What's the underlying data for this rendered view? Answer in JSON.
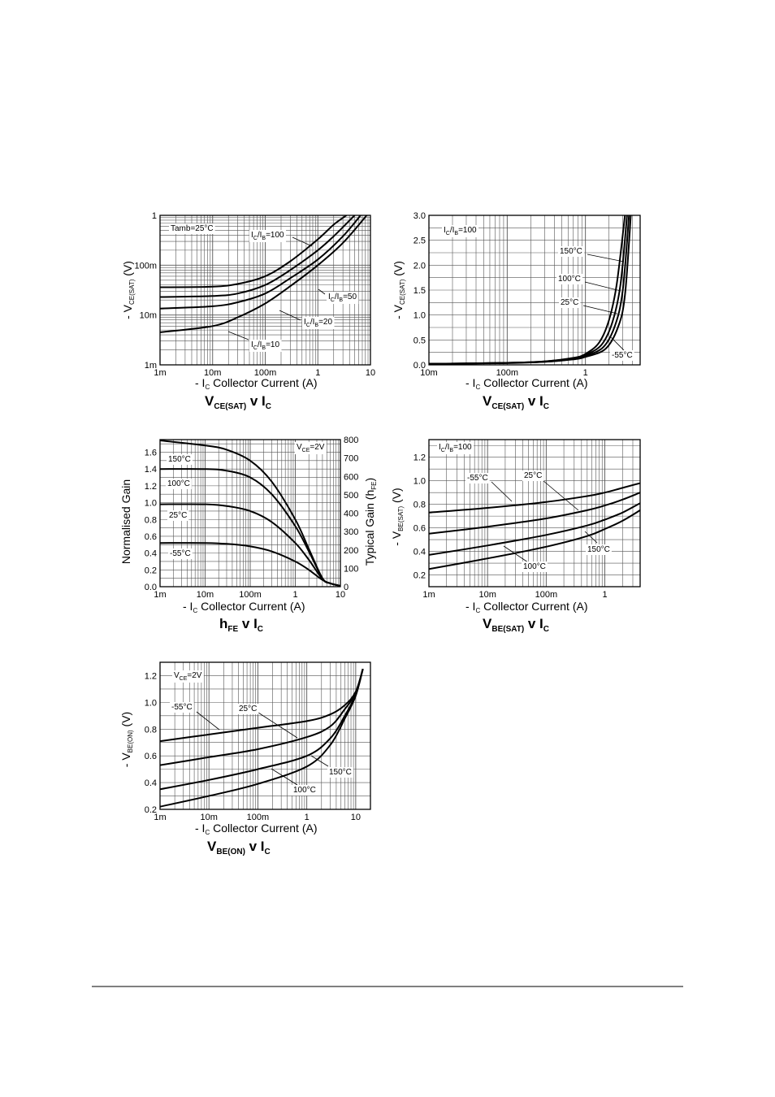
{
  "chart_data": [
    {
      "id": "c1",
      "type": "line",
      "title": {
        "main": "V",
        "main_sub": "CE(SAT)",
        "mid": " v I",
        "mid_sub": "C"
      },
      "xlabel": {
        "pre": "- I",
        "sub": "C",
        "post": " Collector Current (A)"
      },
      "ylabel": {
        "pre": "- V",
        "sub": "CE(SAT)",
        "post": " (V)"
      },
      "x_scale": "log",
      "y_scale": "log",
      "xlim": [
        0.001,
        10
      ],
      "ylim": [
        0.001,
        1
      ],
      "x_ticks": [
        {
          "v": 0.001,
          "t": "1m"
        },
        {
          "v": 0.01,
          "t": "10m"
        },
        {
          "v": 0.1,
          "t": "100m"
        },
        {
          "v": 1,
          "t": "1"
        },
        {
          "v": 10,
          "t": "10"
        }
      ],
      "y_ticks": [
        {
          "v": 0.001,
          "t": "1m"
        },
        {
          "v": 0.01,
          "t": "10m"
        },
        {
          "v": 0.1,
          "t": "100m"
        },
        {
          "v": 1,
          "t": "1"
        }
      ],
      "grid": true,
      "annotations": [
        {
          "text": "Tamb=25°C"
        },
        {
          "pre": "I",
          "sub": "C",
          "mid": "/I",
          "sub2": "B",
          "post": "=100"
        },
        {
          "pre": "I",
          "sub": "C",
          "mid": "/I",
          "sub2": "B",
          "post": "=50"
        },
        {
          "pre": "I",
          "sub": "C",
          "mid": "/I",
          "sub2": "B",
          "post": "=20"
        },
        {
          "pre": "I",
          "sub": "C",
          "mid": "/I",
          "sub2": "B",
          "post": "=10"
        }
      ],
      "series": [
        {
          "name": "IC/IB=100",
          "x": [
            0.001,
            0.01,
            0.03,
            0.1,
            0.3,
            1,
            2,
            3.5
          ],
          "y": [
            0.036,
            0.037,
            0.042,
            0.06,
            0.12,
            0.33,
            0.65,
            1.0
          ]
        },
        {
          "name": "IC/IB=50",
          "x": [
            0.001,
            0.01,
            0.03,
            0.1,
            0.3,
            1,
            2,
            5
          ],
          "y": [
            0.023,
            0.024,
            0.027,
            0.04,
            0.08,
            0.2,
            0.38,
            1.0
          ]
        },
        {
          "name": "IC/IB=20",
          "x": [
            0.001,
            0.01,
            0.03,
            0.1,
            0.3,
            1,
            3,
            6.5
          ],
          "y": [
            0.0135,
            0.015,
            0.018,
            0.027,
            0.055,
            0.13,
            0.38,
            1.0
          ]
        },
        {
          "name": "IC/IB=10",
          "x": [
            0.001,
            0.01,
            0.03,
            0.1,
            0.3,
            1,
            3,
            8.5
          ],
          "y": [
            0.0045,
            0.006,
            0.009,
            0.017,
            0.038,
            0.1,
            0.28,
            1.0
          ]
        }
      ]
    },
    {
      "id": "c2",
      "type": "line",
      "title": {
        "main": "V",
        "main_sub": "CE(SAT)",
        "mid": " v I",
        "mid_sub": "C"
      },
      "xlabel": {
        "pre": "- I",
        "sub": "C",
        "post": " Collector Current (A)"
      },
      "ylabel": {
        "pre": "- V",
        "sub": "CE(SAT)",
        "post": " (V)"
      },
      "x_scale": "log",
      "y_scale": "linear",
      "xlim": [
        0.01,
        5
      ],
      "ylim": [
        0,
        3
      ],
      "x_ticks": [
        {
          "v": 0.01,
          "t": "10m"
        },
        {
          "v": 0.1,
          "t": "100m"
        },
        {
          "v": 1,
          "t": "1"
        }
      ],
      "y_ticks": [
        {
          "v": 0,
          "t": "0.0"
        },
        {
          "v": 0.5,
          "t": "0.5"
        },
        {
          "v": 1,
          "t": "1.0"
        },
        {
          "v": 1.5,
          "t": "1.5"
        },
        {
          "v": 2,
          "t": "2.0"
        },
        {
          "v": 2.5,
          "t": "2.5"
        },
        {
          "v": 3,
          "t": "3.0"
        }
      ],
      "grid": true,
      "annotations": [
        {
          "pre": "I",
          "sub": "C",
          "mid": "/I",
          "sub2": "B",
          "post": "=100"
        },
        {
          "text": "150°C"
        },
        {
          "text": "100°C"
        },
        {
          "text": "25°C"
        },
        {
          "text": "-55°C"
        }
      ],
      "series": [
        {
          "name": "150°C",
          "x": [
            0.01,
            0.1,
            0.3,
            0.7,
            1,
            1.5,
            2,
            2.5,
            3.2
          ],
          "y": [
            0.02,
            0.04,
            0.07,
            0.14,
            0.22,
            0.45,
            0.9,
            1.6,
            3.0
          ]
        },
        {
          "name": "100°C",
          "x": [
            0.01,
            0.1,
            0.3,
            0.7,
            1,
            1.6,
            2.2,
            2.8,
            3.4
          ],
          "y": [
            0.02,
            0.04,
            0.07,
            0.13,
            0.2,
            0.4,
            0.85,
            1.6,
            3.0
          ]
        },
        {
          "name": "25°C",
          "x": [
            0.01,
            0.1,
            0.3,
            0.7,
            1,
            1.7,
            2.4,
            3.0,
            3.6
          ],
          "y": [
            0.02,
            0.04,
            0.06,
            0.12,
            0.18,
            0.36,
            0.8,
            1.5,
            3.0
          ]
        },
        {
          "name": "-55°C",
          "x": [
            0.01,
            0.1,
            0.3,
            0.7,
            1,
            1.8,
            2.6,
            3.2,
            3.8
          ],
          "y": [
            0.02,
            0.035,
            0.06,
            0.11,
            0.16,
            0.32,
            0.75,
            1.4,
            3.0
          ]
        }
      ]
    },
    {
      "id": "c3",
      "type": "line",
      "title": {
        "main": "h",
        "main_sub": "FE",
        "mid": " v I",
        "mid_sub": "C"
      },
      "xlabel": {
        "pre": "- I",
        "sub": "C",
        "post": " Collector Current (A)"
      },
      "ylabel": {
        "text": "Normalised Gain"
      },
      "y2label": {
        "pre": "Typical Gain (h",
        "sub": "FE",
        "post": ")"
      },
      "x_scale": "log",
      "y_scale": "linear",
      "xlim": [
        0.001,
        10
      ],
      "ylim": [
        0,
        1.75
      ],
      "y2lim": [
        0,
        800
      ],
      "x_ticks": [
        {
          "v": 0.001,
          "t": "1m"
        },
        {
          "v": 0.01,
          "t": "10m"
        },
        {
          "v": 0.1,
          "t": "100m"
        },
        {
          "v": 1,
          "t": "1"
        },
        {
          "v": 10,
          "t": "10"
        }
      ],
      "y_ticks": [
        {
          "v": 0,
          "t": "0.0"
        },
        {
          "v": 0.2,
          "t": "0.2"
        },
        {
          "v": 0.4,
          "t": "0.4"
        },
        {
          "v": 0.6,
          "t": "0.6"
        },
        {
          "v": 0.8,
          "t": "0.8"
        },
        {
          "v": 1.0,
          "t": "1.0"
        },
        {
          "v": 1.2,
          "t": "1.2"
        },
        {
          "v": 1.4,
          "t": "1.4"
        },
        {
          "v": 1.6,
          "t": "1.6"
        }
      ],
      "y2_ticks": [
        {
          "v": 0,
          "t": "0"
        },
        {
          "v": 100,
          "t": "100"
        },
        {
          "v": 200,
          "t": "200"
        },
        {
          "v": 300,
          "t": "300"
        },
        {
          "v": 400,
          "t": "400"
        },
        {
          "v": 500,
          "t": "500"
        },
        {
          "v": 600,
          "t": "600"
        },
        {
          "v": 700,
          "t": "700"
        },
        {
          "v": 800,
          "t": "800"
        }
      ],
      "grid": true,
      "annotations": [
        {
          "pre": "V",
          "sub": "CE",
          "post": "=2V"
        },
        {
          "text": "150°C"
        },
        {
          "text": "100°C"
        },
        {
          "text": "25°C"
        },
        {
          "text": "-55°C"
        }
      ],
      "series": [
        {
          "name": "150°C",
          "x": [
            0.001,
            0.01,
            0.03,
            0.1,
            0.3,
            1,
            2,
            4,
            6,
            10
          ],
          "y": [
            1.74,
            1.68,
            1.63,
            1.5,
            1.25,
            0.8,
            0.45,
            0.1,
            0.04,
            0.01
          ]
        },
        {
          "name": "100°C",
          "x": [
            0.001,
            0.01,
            0.03,
            0.1,
            0.3,
            1,
            2,
            4,
            6,
            10
          ],
          "y": [
            1.4,
            1.4,
            1.38,
            1.3,
            1.1,
            0.72,
            0.42,
            0.1,
            0.04,
            0.01
          ]
        },
        {
          "name": "25°C",
          "x": [
            0.001,
            0.01,
            0.03,
            0.1,
            0.3,
            1,
            2,
            4,
            6,
            10
          ],
          "y": [
            0.98,
            0.98,
            0.96,
            0.9,
            0.77,
            0.52,
            0.32,
            0.09,
            0.04,
            0.01
          ]
        },
        {
          "name": "-55°C",
          "x": [
            0.001,
            0.01,
            0.03,
            0.1,
            0.3,
            1,
            2,
            4,
            6,
            10
          ],
          "y": [
            0.52,
            0.52,
            0.51,
            0.48,
            0.42,
            0.3,
            0.2,
            0.08,
            0.04,
            0.01
          ]
        }
      ]
    },
    {
      "id": "c4",
      "type": "line",
      "title": {
        "main": "V",
        "main_sub": "BE(SAT)",
        "mid": " v I",
        "mid_sub": "C"
      },
      "xlabel": {
        "pre": "- I",
        "sub": "C",
        "post": " Collector Current (A)"
      },
      "ylabel": {
        "pre": "- V",
        "sub": "BE(SAT)",
        "post": " (V)"
      },
      "x_scale": "log",
      "y_scale": "linear",
      "xlim": [
        0.001,
        4
      ],
      "ylim": [
        0.1,
        1.35
      ],
      "x_ticks": [
        {
          "v": 0.001,
          "t": "1m"
        },
        {
          "v": 0.01,
          "t": "10m"
        },
        {
          "v": 0.1,
          "t": "100m"
        },
        {
          "v": 1,
          "t": "1"
        }
      ],
      "y_ticks": [
        {
          "v": 0.2,
          "t": "0.2"
        },
        {
          "v": 0.4,
          "t": "0.4"
        },
        {
          "v": 0.6,
          "t": "0.6"
        },
        {
          "v": 0.8,
          "t": "0.8"
        },
        {
          "v": 1.0,
          "t": "1.0"
        },
        {
          "v": 1.2,
          "t": "1.2"
        }
      ],
      "grid": true,
      "annotations": [
        {
          "pre": "I",
          "sub": "C",
          "mid": "/I",
          "sub2": "B",
          "post": "=100"
        },
        {
          "text": "-55°C"
        },
        {
          "text": "25°C"
        },
        {
          "text": "150°C"
        },
        {
          "text": "100°C"
        }
      ],
      "series": [
        {
          "name": "-55°C",
          "x": [
            0.001,
            0.01,
            0.1,
            0.5,
            1,
            2,
            4
          ],
          "y": [
            0.73,
            0.77,
            0.82,
            0.87,
            0.9,
            0.94,
            0.98
          ]
        },
        {
          "name": "25°C",
          "x": [
            0.001,
            0.01,
            0.1,
            0.5,
            1,
            2,
            4
          ],
          "y": [
            0.55,
            0.61,
            0.68,
            0.75,
            0.79,
            0.84,
            0.9
          ]
        },
        {
          "name": "100°C",
          "x": [
            0.001,
            0.01,
            0.1,
            0.5,
            1,
            2,
            4
          ],
          "y": [
            0.37,
            0.45,
            0.54,
            0.62,
            0.67,
            0.73,
            0.81
          ]
        },
        {
          "name": "150°C",
          "x": [
            0.001,
            0.01,
            0.1,
            0.5,
            1,
            2,
            4
          ],
          "y": [
            0.25,
            0.34,
            0.44,
            0.53,
            0.59,
            0.66,
            0.75
          ]
        }
      ]
    },
    {
      "id": "c5",
      "type": "line",
      "title": {
        "main": "V",
        "main_sub": "BE(ON)",
        "mid": " v I",
        "mid_sub": "C"
      },
      "xlabel": {
        "pre": "- I",
        "sub": "C",
        "post": " Collector Current (A)"
      },
      "ylabel": {
        "pre": "- V",
        "sub": "BE(ON)",
        "post": " (V)"
      },
      "x_scale": "log",
      "y_scale": "linear",
      "xlim": [
        0.001,
        20
      ],
      "ylim": [
        0.2,
        1.3
      ],
      "x_ticks": [
        {
          "v": 0.001,
          "t": "1m"
        },
        {
          "v": 0.01,
          "t": "10m"
        },
        {
          "v": 0.1,
          "t": "100m"
        },
        {
          "v": 1,
          "t": "1"
        },
        {
          "v": 10,
          "t": "10"
        }
      ],
      "y_ticks": [
        {
          "v": 0.2,
          "t": "0.2"
        },
        {
          "v": 0.4,
          "t": "0.4"
        },
        {
          "v": 0.6,
          "t": "0.6"
        },
        {
          "v": 0.8,
          "t": "0.8"
        },
        {
          "v": 1.0,
          "t": "1.0"
        },
        {
          "v": 1.2,
          "t": "1.2"
        }
      ],
      "grid": true,
      "annotations": [
        {
          "pre": "V",
          "sub": "CE",
          "post": "=2V"
        },
        {
          "text": "-55°C"
        },
        {
          "text": "25°C"
        },
        {
          "text": "150°C"
        },
        {
          "text": "100°C"
        }
      ],
      "series": [
        {
          "name": "-55°C",
          "x": [
            0.001,
            0.01,
            0.1,
            1,
            3,
            6,
            10,
            14
          ],
          "y": [
            0.71,
            0.76,
            0.81,
            0.86,
            0.91,
            0.98,
            1.08,
            1.25
          ]
        },
        {
          "name": "25°C",
          "x": [
            0.001,
            0.01,
            0.1,
            1,
            3,
            6,
            10,
            14
          ],
          "y": [
            0.53,
            0.59,
            0.65,
            0.74,
            0.82,
            0.95,
            1.07,
            1.25
          ]
        },
        {
          "name": "100°C",
          "x": [
            0.001,
            0.01,
            0.1,
            1,
            3,
            6,
            10,
            14
          ],
          "y": [
            0.35,
            0.42,
            0.5,
            0.6,
            0.73,
            0.9,
            1.06,
            1.25
          ]
        },
        {
          "name": "150°C",
          "x": [
            0.001,
            0.01,
            0.1,
            1,
            3,
            6,
            10,
            14
          ],
          "y": [
            0.22,
            0.3,
            0.39,
            0.52,
            0.68,
            0.88,
            1.05,
            1.25
          ]
        }
      ]
    }
  ]
}
